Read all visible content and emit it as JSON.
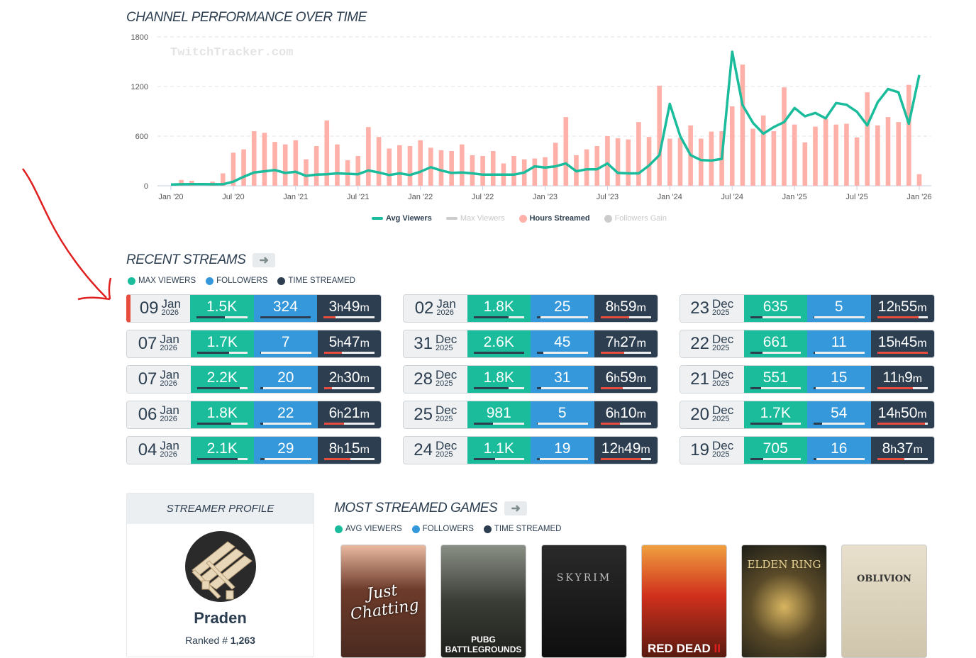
{
  "chart": {
    "title": "CHANNEL PERFORMANCE OVER TIME",
    "watermark": "TwitchTracker.com",
    "legend": [
      {
        "label": "Avg Viewers",
        "color": "#1abc9c",
        "active": true,
        "shape": "line"
      },
      {
        "label": "Max Viewers",
        "color": "#cccccc",
        "active": false,
        "shape": "line"
      },
      {
        "label": "Hours Streamed",
        "color": "#ffb0a8",
        "active": true,
        "shape": "dot"
      },
      {
        "label": "Followers Gain",
        "color": "#cccccc",
        "active": false,
        "shape": "dot"
      }
    ]
  },
  "chart_data": {
    "type": "bar+line",
    "x_start": "2020-01",
    "x_end": "2026-01",
    "x_ticks": [
      "Jan '20",
      "Jul '20",
      "Jan '21",
      "Jul '21",
      "Jan '22",
      "Jul '22",
      "Jan '23",
      "Jul '23",
      "Jan '24",
      "Jul '24",
      "Jan '25",
      "Jul '25",
      "Jan '26"
    ],
    "y_ticks": [
      "0",
      "600",
      "1200",
      "1800"
    ],
    "ylim": [
      0,
      1800
    ],
    "grid": true,
    "legend_placement": "bottom",
    "series": [
      {
        "name": "Hours Streamed",
        "type": "bar",
        "color": "#ffb0a8",
        "values": [
          0,
          70,
          60,
          0,
          50,
          150,
          400,
          440,
          660,
          640,
          530,
          500,
          550,
          320,
          480,
          790,
          500,
          310,
          360,
          710,
          590,
          450,
          490,
          480,
          550,
          460,
          430,
          420,
          500,
          370,
          360,
          420,
          270,
          360,
          320,
          330,
          345,
          520,
          830,
          370,
          440,
          480,
          600,
          575,
          560,
          770,
          590,
          1210,
          570,
          580,
          730,
          570,
          655,
          660,
          960,
          1465,
          690,
          850,
          660,
          1190,
          740,
          525,
          715,
          810,
          740,
          750,
          585,
          1130,
          730,
          830,
          770,
          1220,
          140
        ]
      },
      {
        "name": "Avg Viewers",
        "type": "line",
        "color": "#1abc9c",
        "values": [
          15,
          18,
          20,
          20,
          18,
          18,
          50,
          110,
          160,
          175,
          190,
          155,
          170,
          120,
          135,
          140,
          150,
          145,
          140,
          185,
          160,
          130,
          150,
          130,
          170,
          225,
          185,
          155,
          160,
          150,
          135,
          135,
          135,
          135,
          160,
          235,
          220,
          235,
          270,
          175,
          200,
          200,
          270,
          155,
          150,
          150,
          245,
          370,
          990,
          600,
          370,
          310,
          305,
          325,
          1620,
          975,
          760,
          630,
          710,
          770,
          940,
          840,
          880,
          815,
          1000,
          980,
          895,
          730,
          1010,
          1170,
          1130,
          750,
          1340
        ]
      }
    ]
  },
  "recent": {
    "title": "RECENT STREAMS",
    "legend": [
      {
        "label": "MAX VIEWERS",
        "color": "#1abc9c"
      },
      {
        "label": "FOLLOWERS",
        "color": "#3498db"
      },
      {
        "label": "TIME STREAMED",
        "color": "#2c3e50"
      }
    ],
    "streams": [
      {
        "day": "09",
        "month": "Jan",
        "year": "2026",
        "viewers": "1.5K",
        "followers": "324",
        "time_h": "3",
        "time_m": "49",
        "pv": 56,
        "pf": 100,
        "pt": 24,
        "live": true
      },
      {
        "day": "07",
        "month": "Jan",
        "year": "2026",
        "viewers": "1.7K",
        "followers": "7",
        "time_h": "5",
        "time_m": "47",
        "pv": 63,
        "pf": 2,
        "pt": 36
      },
      {
        "day": "07",
        "month": "Jan",
        "year": "2026",
        "viewers": "2.2K",
        "followers": "20",
        "time_h": "2",
        "time_m": "30",
        "pv": 85,
        "pf": 6,
        "pt": 16
      },
      {
        "day": "06",
        "month": "Jan",
        "year": "2026",
        "viewers": "1.8K",
        "followers": "22",
        "time_h": "6",
        "time_m": "21",
        "pv": 68,
        "pf": 6,
        "pt": 40
      },
      {
        "day": "04",
        "month": "Jan",
        "year": "2026",
        "viewers": "2.1K",
        "followers": "29",
        "time_h": "8",
        "time_m": "15",
        "pv": 80,
        "pf": 8,
        "pt": 52
      },
      {
        "day": "02",
        "month": "Jan",
        "year": "2026",
        "viewers": "1.8K",
        "followers": "25",
        "time_h": "8",
        "time_m": "59",
        "pv": 69,
        "pf": 7,
        "pt": 57
      },
      {
        "day": "31",
        "month": "Dec",
        "year": "2025",
        "viewers": "2.6K",
        "followers": "45",
        "time_h": "7",
        "time_m": "27",
        "pv": 100,
        "pf": 12,
        "pt": 47
      },
      {
        "day": "28",
        "month": "Dec",
        "year": "2025",
        "viewers": "1.8K",
        "followers": "31",
        "time_h": "6",
        "time_m": "59",
        "pv": 69,
        "pf": 8,
        "pt": 44
      },
      {
        "day": "25",
        "month": "Dec",
        "year": "2025",
        "viewers": "981",
        "followers": "5",
        "time_h": "6",
        "time_m": "10",
        "pv": 38,
        "pf": 1,
        "pt": 39
      },
      {
        "day": "24",
        "month": "Dec",
        "year": "2025",
        "viewers": "1.1K",
        "followers": "19",
        "time_h": "12",
        "time_m": "49",
        "pv": 43,
        "pf": 5,
        "pt": 81
      },
      {
        "day": "23",
        "month": "Dec",
        "year": "2025",
        "viewers": "635",
        "followers": "5",
        "time_h": "12",
        "time_m": "55",
        "pv": 24,
        "pf": 1,
        "pt": 82
      },
      {
        "day": "22",
        "month": "Dec",
        "year": "2025",
        "viewers": "661",
        "followers": "11",
        "time_h": "15",
        "time_m": "45",
        "pv": 25,
        "pf": 3,
        "pt": 100
      },
      {
        "day": "21",
        "month": "Dec",
        "year": "2025",
        "viewers": "551",
        "followers": "15",
        "time_h": "11",
        "time_m": "9",
        "pv": 21,
        "pf": 4,
        "pt": 70
      },
      {
        "day": "20",
        "month": "Dec",
        "year": "2025",
        "viewers": "1.7K",
        "followers": "54",
        "time_h": "14",
        "time_m": "50",
        "pv": 64,
        "pf": 17,
        "pt": 95
      },
      {
        "day": "19",
        "month": "Dec",
        "year": "2025",
        "viewers": "705",
        "followers": "16",
        "time_h": "8",
        "time_m": "37",
        "pv": 26,
        "pf": 5,
        "pt": 54
      }
    ]
  },
  "profile": {
    "title": "STREAMER PROFILE",
    "name": "Praden",
    "rank_label": "Ranked #",
    "rank": "1,263"
  },
  "games": {
    "title": "MOST STREAMED GAMES",
    "legend": [
      {
        "label": "AVG VIEWERS",
        "color": "#1abc9c"
      },
      {
        "label": "FOLLOWERS",
        "color": "#3498db"
      },
      {
        "label": "TIME STREAMED",
        "color": "#2c3e50"
      }
    ],
    "items": [
      {
        "logo": "Just Chatting"
      },
      {
        "logo": "PUBG BATTLEGROUNDS"
      },
      {
        "logo": "SKYRIM"
      },
      {
        "logo": "RED DEAD II"
      },
      {
        "logo": "ELDEN RING"
      },
      {
        "logo": "OBLIVION"
      }
    ]
  }
}
